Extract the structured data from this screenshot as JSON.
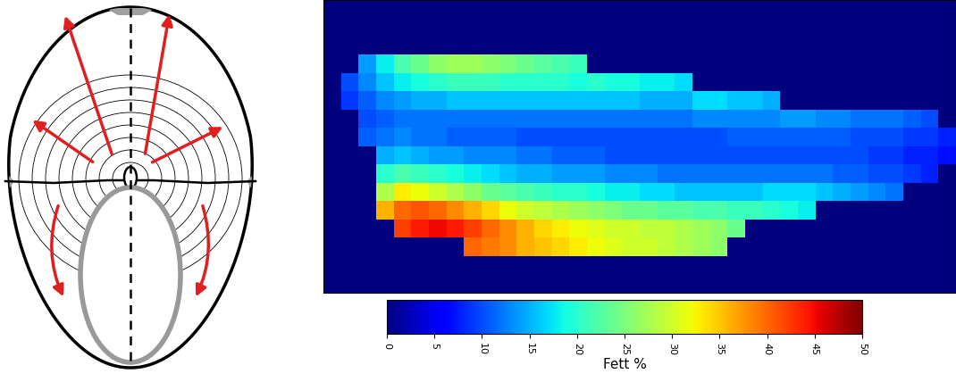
{
  "chart_data": {
    "type": "heatmap",
    "tick_labels": false,
    "cells": [
      [
        0,
        0,
        0,
        0,
        0,
        0,
        0,
        0,
        0,
        0,
        0,
        0,
        0,
        0,
        0,
        0,
        0,
        0,
        0,
        0,
        0,
        0,
        0,
        0,
        0,
        0,
        0,
        0,
        0,
        0,
        0,
        0,
        0,
        0,
        0,
        0
      ],
      [
        0,
        0,
        0,
        0,
        0,
        0,
        0,
        0,
        0,
        0,
        0,
        0,
        0,
        0,
        0,
        0,
        0,
        0,
        0,
        0,
        0,
        0,
        0,
        0,
        0,
        0,
        0,
        0,
        0,
        0,
        0,
        0,
        0,
        0,
        0,
        0
      ],
      [
        0,
        0,
        0,
        0,
        0,
        0,
        0,
        0,
        0,
        0,
        0,
        0,
        0,
        0,
        0,
        0,
        0,
        0,
        0,
        0,
        0,
        0,
        0,
        0,
        0,
        0,
        0,
        0,
        0,
        0,
        0,
        0,
        0,
        0,
        0,
        0
      ],
      [
        0,
        0,
        14,
        18,
        22,
        24,
        26,
        27,
        27,
        26,
        25,
        24,
        23,
        22,
        21,
        0,
        0,
        0,
        0,
        0,
        0,
        0,
        0,
        0,
        0,
        0,
        0,
        0,
        0,
        0,
        0,
        0,
        0,
        0,
        0,
        0
      ],
      [
        0,
        10,
        13,
        16,
        18,
        19,
        20,
        21,
        21,
        21,
        20,
        20,
        20,
        20,
        19,
        20,
        19,
        19,
        18,
        18,
        17,
        0,
        0,
        0,
        0,
        0,
        0,
        0,
        0,
        0,
        0,
        0,
        0,
        0,
        0,
        0
      ],
      [
        0,
        9,
        11,
        13,
        14,
        15,
        15,
        16,
        16,
        16,
        16,
        16,
        16,
        16,
        16,
        16,
        16,
        16,
        15,
        15,
        15,
        17,
        17,
        16,
        16,
        15,
        0,
        0,
        0,
        0,
        0,
        0,
        0,
        0,
        0,
        0
      ],
      [
        0,
        0,
        10,
        11,
        12,
        12,
        12,
        12,
        12,
        12,
        12,
        12,
        12,
        12,
        12,
        12,
        12,
        12,
        12,
        12,
        12,
        13,
        13,
        13,
        13,
        13,
        14,
        14,
        13,
        13,
        12,
        12,
        12,
        11,
        10,
        0
      ],
      [
        0,
        0,
        11,
        12,
        13,
        12,
        12,
        11,
        11,
        11,
        11,
        10,
        10,
        10,
        10,
        10,
        10,
        10,
        10,
        10,
        10,
        10,
        10,
        11,
        11,
        11,
        11,
        11,
        11,
        11,
        10,
        10,
        10,
        9,
        9,
        8
      ],
      [
        0,
        0,
        0,
        15,
        16,
        15,
        14,
        14,
        13,
        13,
        13,
        12,
        12,
        11,
        11,
        11,
        10,
        10,
        10,
        10,
        10,
        10,
        10,
        10,
        10,
        10,
        10,
        10,
        10,
        10,
        10,
        9,
        9,
        8,
        8,
        7
      ],
      [
        0,
        0,
        0,
        20,
        22,
        21,
        20,
        19,
        18,
        17,
        16,
        15,
        15,
        14,
        14,
        14,
        13,
        13,
        13,
        12,
        12,
        12,
        12,
        12,
        12,
        12,
        12,
        12,
        12,
        11,
        11,
        10,
        10,
        9,
        8,
        0
      ],
      [
        0,
        0,
        0,
        28,
        33,
        32,
        30,
        28,
        26,
        24,
        23,
        22,
        21,
        20,
        20,
        19,
        18,
        18,
        17,
        17,
        16,
        16,
        16,
        16,
        16,
        17,
        17,
        17,
        16,
        15,
        14,
        13,
        12,
        0,
        0,
        0
      ],
      [
        0,
        0,
        0,
        36,
        40,
        41,
        40,
        38,
        36,
        34,
        32,
        30,
        29,
        28,
        27,
        26,
        25,
        24,
        24,
        23,
        23,
        22,
        22,
        21,
        21,
        20,
        19,
        18,
        0,
        0,
        0,
        0,
        0,
        0,
        0,
        0
      ],
      [
        0,
        0,
        0,
        0,
        42,
        44,
        45,
        44,
        42,
        40,
        38,
        36,
        34,
        33,
        32,
        31,
        30,
        30,
        29,
        29,
        28,
        27,
        26,
        24,
        0,
        0,
        0,
        0,
        0,
        0,
        0,
        0,
        0,
        0,
        0,
        0
      ],
      [
        0,
        0,
        0,
        0,
        0,
        0,
        0,
        0,
        40,
        39,
        38,
        36,
        35,
        34,
        33,
        32,
        31,
        30,
        30,
        29,
        28,
        27,
        26,
        0,
        0,
        0,
        0,
        0,
        0,
        0,
        0,
        0,
        0,
        0,
        0,
        0
      ],
      [
        0,
        0,
        0,
        0,
        0,
        0,
        0,
        0,
        0,
        0,
        0,
        0,
        0,
        0,
        0,
        0,
        0,
        0,
        0,
        0,
        0,
        0,
        0,
        0,
        0,
        0,
        0,
        0,
        0,
        0,
        0,
        0,
        0,
        0,
        0,
        0
      ],
      [
        0,
        0,
        0,
        0,
        0,
        0,
        0,
        0,
        0,
        0,
        0,
        0,
        0,
        0,
        0,
        0,
        0,
        0,
        0,
        0,
        0,
        0,
        0,
        0,
        0,
        0,
        0,
        0,
        0,
        0,
        0,
        0,
        0,
        0,
        0,
        0
      ]
    ],
    "colorbar_range": [
      0,
      50
    ],
    "colorbar_ticks": [
      0,
      5,
      10,
      15,
      20,
      25,
      30,
      35,
      40,
      45,
      50
    ],
    "colorbar_label": "Fett %"
  }
}
